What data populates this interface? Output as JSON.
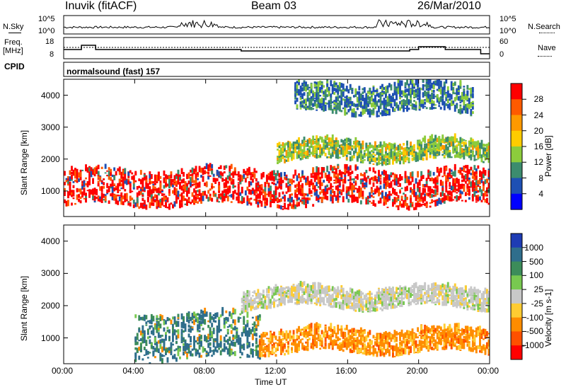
{
  "header": {
    "station": "Inuvik (fitACF)",
    "beam": "Beam 03",
    "date": "26/Mar/2010"
  },
  "strip_labels": {
    "nsky": "N.Sky",
    "nsearch": "N.Search",
    "freq": "Freq.",
    "freq_unit": "[MHz]",
    "nave": "Nave",
    "cpid": "CPID",
    "cpid_name": "normalsound (fast) 157",
    "noise_ticks_left": [
      "10^5",
      "10^0"
    ],
    "noise_ticks_right": [
      "10^5",
      "10^0"
    ],
    "freq_ticks": [
      "18",
      "8"
    ],
    "nave_ticks": [
      "60",
      "0"
    ]
  },
  "chart_data": [
    {
      "type": "heatmap",
      "title": "",
      "xlabel": "Time UT",
      "ylabel": "Slant Range [km]",
      "x_ticks": [
        "00:00",
        "04:00",
        "08:00",
        "12:00",
        "16:00",
        "20:00",
        "00:00"
      ],
      "y_ticks": [
        1000,
        2000,
        3000,
        4000
      ],
      "ylim": [
        200,
        4500
      ],
      "colorbar": {
        "label": "Power [dB]",
        "ticks": [
          "28",
          "24",
          "20",
          "16",
          "12",
          "8",
          "4"
        ],
        "colors": [
          "#ff0000",
          "#ff5a00",
          "#ff9900",
          "#ffcc00",
          "#8ccc3c",
          "#3c8c6e",
          "#1e50b4",
          "#0000ff"
        ]
      },
      "features": [
        {
          "band_km": [
            500,
            1600
          ],
          "time_h": [
            0,
            24
          ],
          "level": "strong"
        },
        {
          "band_km": [
            1900,
            2500
          ],
          "time_h": [
            12,
            24
          ],
          "level": "moderate"
        },
        {
          "band_km": [
            3400,
            4300
          ],
          "time_h": [
            13,
            23
          ],
          "level": "weak"
        }
      ]
    },
    {
      "type": "heatmap",
      "title": "",
      "xlabel": "Time UT",
      "ylabel": "Slant Range [km]",
      "x_ticks": [
        "00:00",
        "04:00",
        "08:00",
        "12:00",
        "16:00",
        "20:00",
        "00:00"
      ],
      "y_ticks": [
        1000,
        2000,
        3000,
        4000
      ],
      "ylim": [
        200,
        4500
      ],
      "colorbar": {
        "label": "Velocity [m s-1]",
        "ticks": [
          "1000",
          "500",
          "100",
          "25",
          "-25",
          "-100",
          "-500",
          "-1000"
        ],
        "colors": [
          "#1e3cb4",
          "#2f6e8c",
          "#3c8c5a",
          "#78c850",
          "#c8c8c8",
          "#ffcc32",
          "#ff8c00",
          "#ff5000",
          "#ff0000"
        ]
      },
      "features": [
        {
          "band_km": [
            300,
            1700
          ],
          "time_h": [
            4,
            11
          ],
          "level": "positive"
        },
        {
          "band_km": [
            500,
            1200
          ],
          "time_h": [
            11,
            24
          ],
          "level": "negative"
        },
        {
          "band_km": [
            1900,
            2500
          ],
          "time_h": [
            10,
            24
          ],
          "level": "zero"
        }
      ]
    }
  ]
}
